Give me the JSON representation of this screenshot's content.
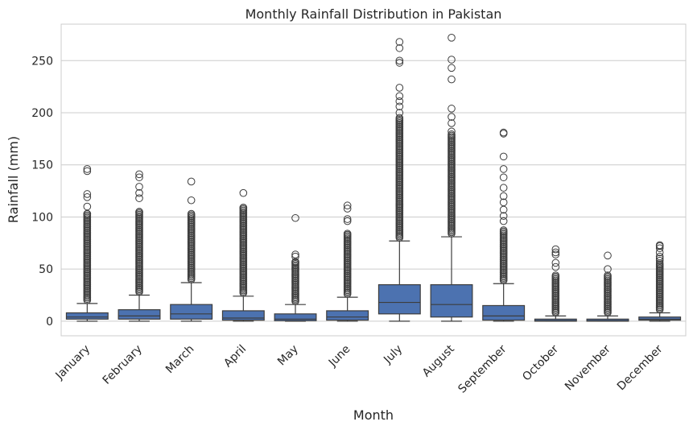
{
  "chart_data": {
    "type": "box",
    "title": "Monthly Rainfall Distribution in Pakistan",
    "xlabel": "Month",
    "ylabel": "Rainfall (mm)",
    "ylim": [
      -14,
      285
    ],
    "yticks": [
      0,
      50,
      100,
      150,
      200,
      250
    ],
    "grid": true,
    "box_color": "#4c72b0",
    "line_color": "#3d3d3d",
    "grid_color": "#cccccc",
    "categories": [
      "January",
      "February",
      "March",
      "April",
      "May",
      "June",
      "July",
      "August",
      "September",
      "October",
      "November",
      "December"
    ],
    "boxes": [
      {
        "month": "January",
        "whisker_low": 0,
        "q1": 2,
        "median": 4,
        "q3": 8,
        "whisker_high": 17,
        "outlier_band": [
          17,
          103
        ],
        "outliers": [
          103,
          110,
          119,
          122,
          144,
          146
        ]
      },
      {
        "month": "February",
        "whisker_low": 0,
        "q1": 2,
        "median": 5,
        "q3": 11,
        "whisker_high": 25,
        "outlier_band": [
          25,
          105
        ],
        "outliers": [
          105,
          118,
          123,
          129,
          138,
          141
        ]
      },
      {
        "month": "March",
        "whisker_low": 0,
        "q1": 2,
        "median": 7,
        "q3": 16,
        "whisker_high": 37,
        "outlier_band": [
          37,
          103
        ],
        "outliers": [
          103,
          116,
          134
        ]
      },
      {
        "month": "April",
        "whisker_low": 0,
        "q1": 1,
        "median": 3,
        "q3": 10,
        "whisker_high": 24,
        "outlier_band": [
          24,
          109
        ],
        "outliers": [
          109,
          123
        ]
      },
      {
        "month": "May",
        "whisker_low": 0,
        "q1": 0.5,
        "median": 2,
        "q3": 7,
        "whisker_high": 16,
        "outlier_band": [
          16,
          57
        ],
        "outliers": [
          57,
          62,
          64,
          99
        ]
      },
      {
        "month": "June",
        "whisker_low": 0,
        "q1": 1,
        "median": 4,
        "q3": 10,
        "whisker_high": 23,
        "outlier_band": [
          23,
          84
        ],
        "outliers": [
          84,
          96,
          98,
          108,
          111
        ]
      },
      {
        "month": "July",
        "whisker_low": 0,
        "q1": 7,
        "median": 18,
        "q3": 35,
        "whisker_high": 77,
        "outlier_band": [
          77,
          196
        ],
        "outliers": [
          200,
          206,
          211,
          216,
          224,
          248,
          250,
          262,
          268
        ]
      },
      {
        "month": "August",
        "whisker_low": 0,
        "q1": 4,
        "median": 16,
        "q3": 35,
        "whisker_high": 81,
        "outlier_band": [
          81,
          180
        ],
        "outliers": [
          182,
          190,
          196,
          204,
          232,
          243,
          251,
          272
        ]
      },
      {
        "month": "September",
        "whisker_low": 0,
        "q1": 1,
        "median": 5,
        "q3": 15,
        "whisker_high": 36,
        "outlier_band": [
          36,
          88
        ],
        "outliers": [
          96,
          101,
          107,
          114,
          120,
          128,
          138,
          146,
          158,
          180,
          181
        ]
      },
      {
        "month": "October",
        "whisker_low": 0,
        "q1": 0,
        "median": 0.5,
        "q3": 2,
        "whisker_high": 5,
        "outlier_band": [
          5,
          45
        ],
        "outliers": [
          52,
          56,
          64,
          66,
          69
        ]
      },
      {
        "month": "November",
        "whisker_low": 0,
        "q1": 0,
        "median": 0.5,
        "q3": 2,
        "whisker_high": 5,
        "outlier_band": [
          5,
          44
        ],
        "outliers": [
          50,
          63
        ]
      },
      {
        "month": "December",
        "whisker_low": 0,
        "q1": 1,
        "median": 2,
        "q3": 4,
        "whisker_high": 8,
        "outlier_band": [
          8,
          56
        ],
        "outliers": [
          58,
          60,
          62,
          66,
          70,
          72,
          73
        ]
      }
    ]
  }
}
